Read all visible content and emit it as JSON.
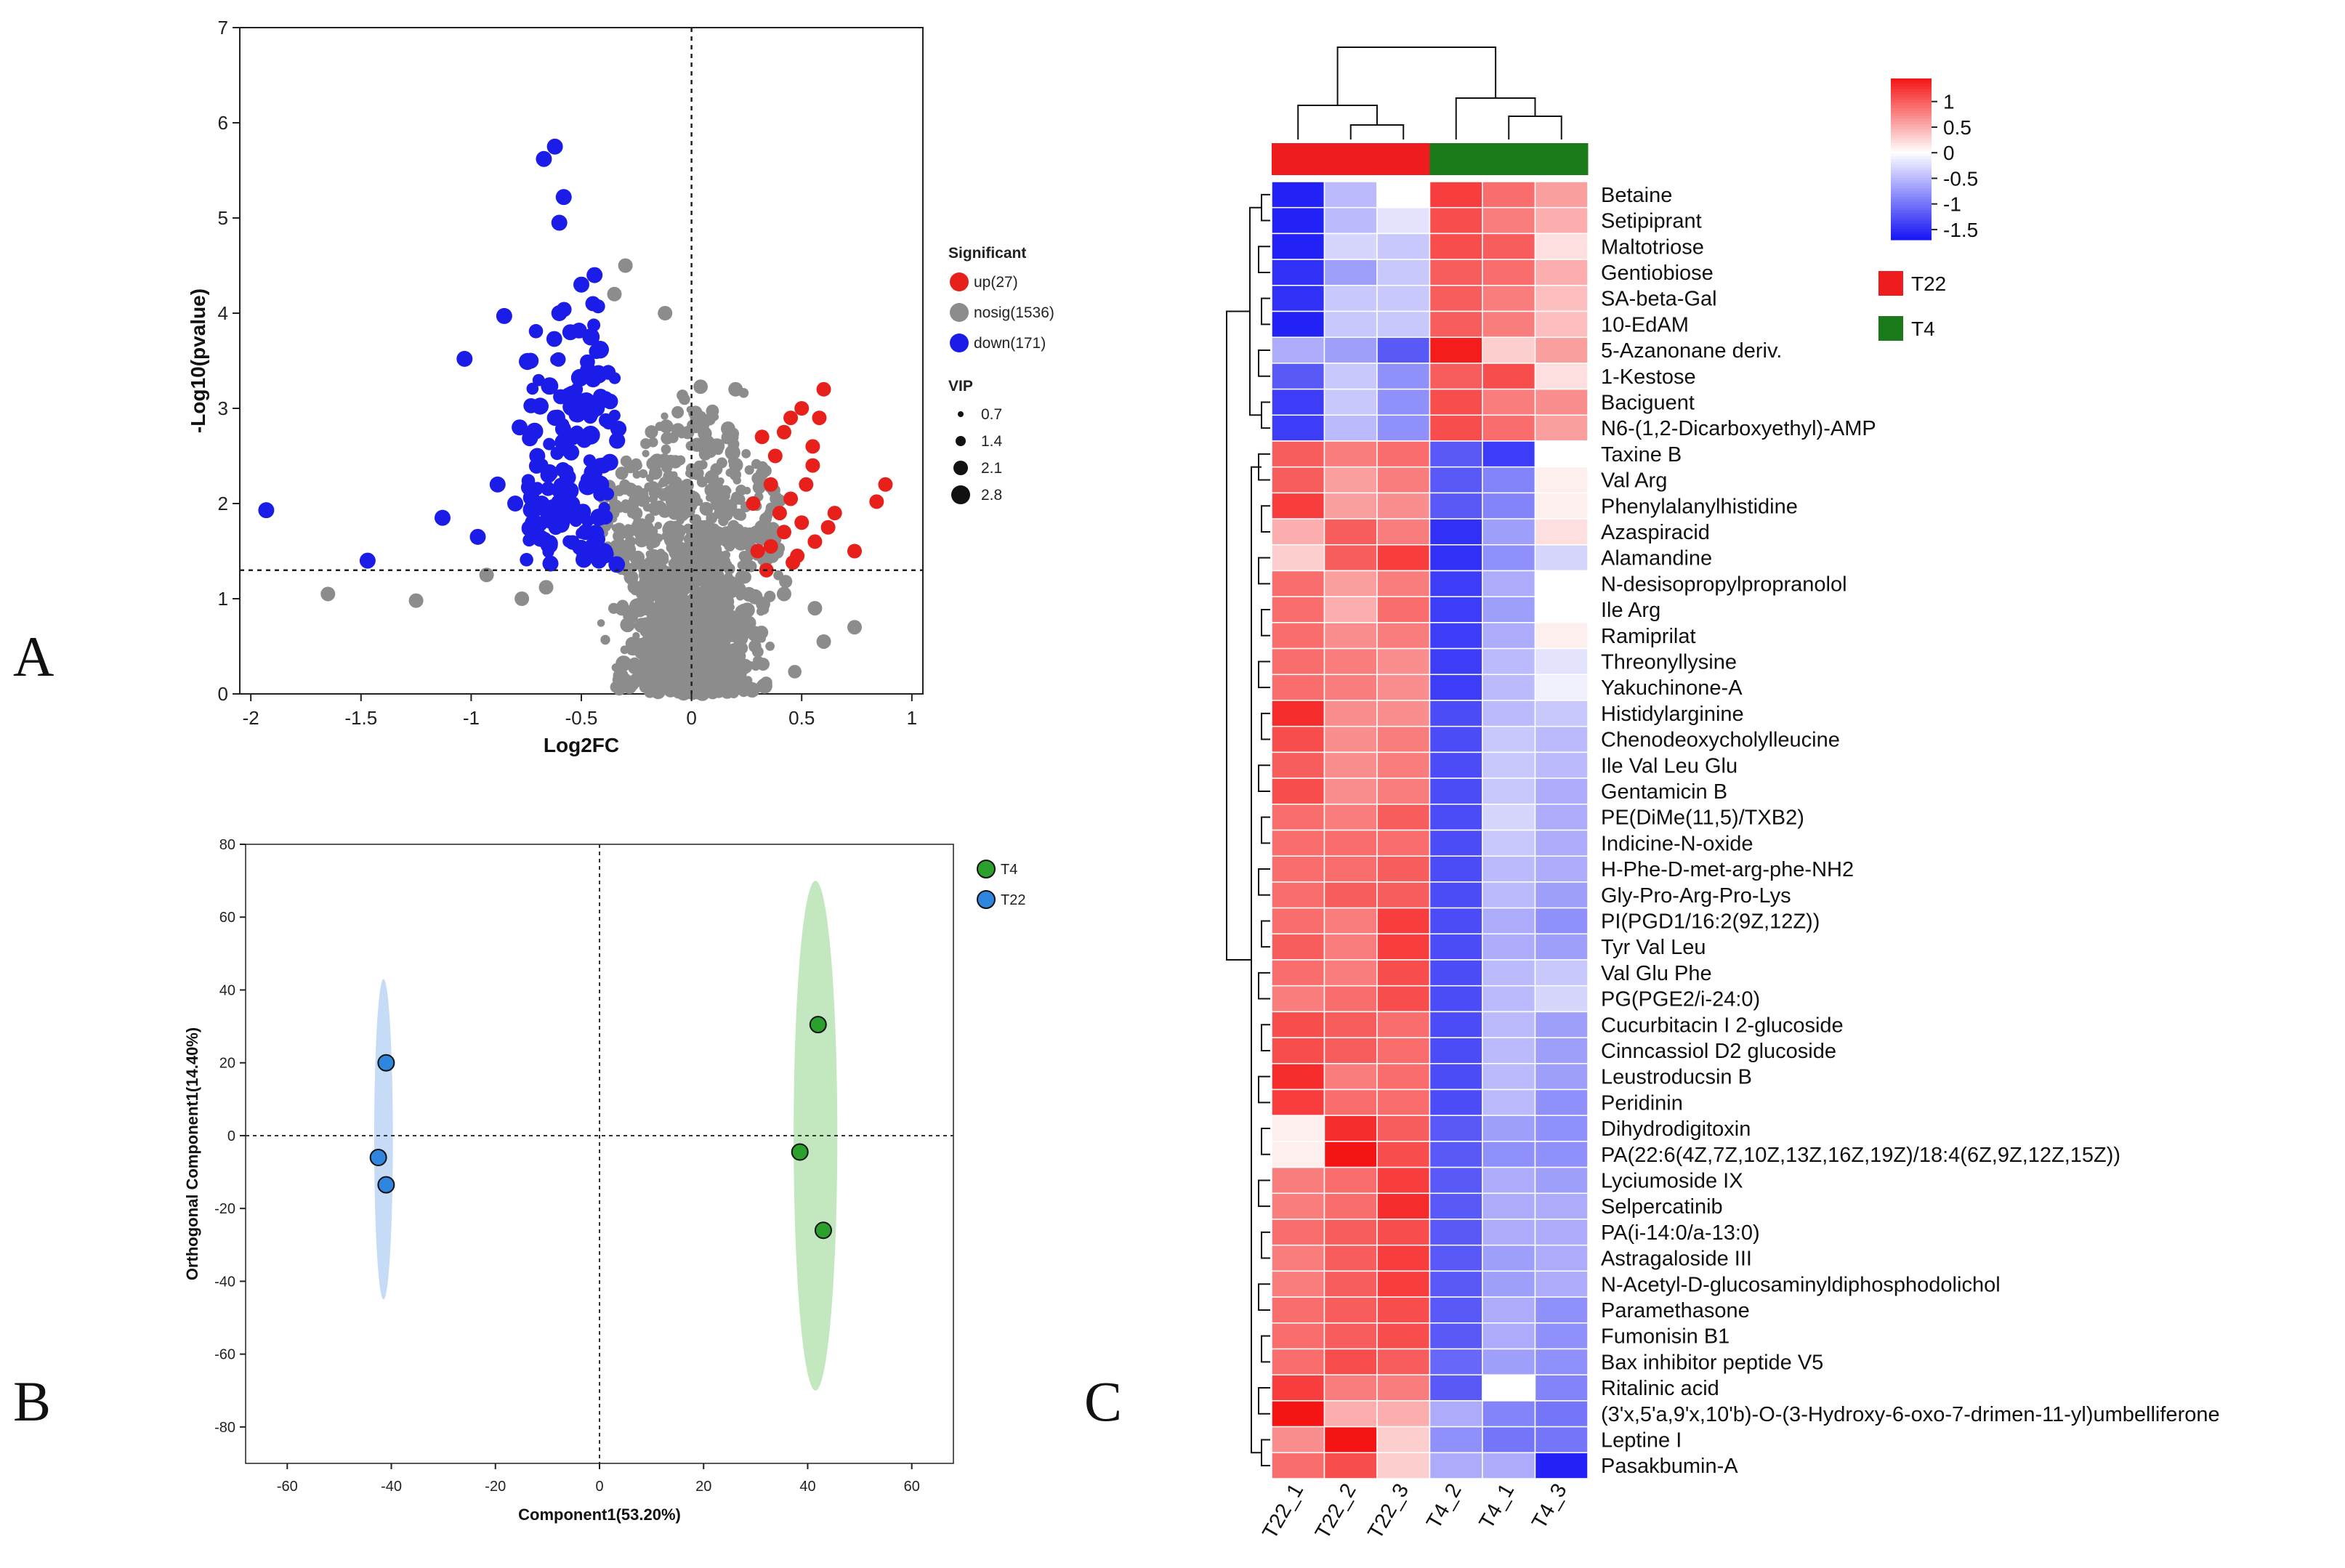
{
  "panels": {
    "a": "A",
    "b": "B",
    "c": "C"
  },
  "chart_data": [
    {
      "type": "scatter",
      "id": "volcano",
      "xlabel": "Log2FC",
      "ylabel": "-Log10(pvalue)",
      "xlim": [
        -2.05,
        1.05
      ],
      "ylim": [
        0,
        7
      ],
      "x_ticks": [
        -2,
        -1.5,
        -1,
        -0.5,
        0,
        0.5,
        1
      ],
      "x_tick_labels": [
        "-2",
        "-1.5",
        "-1",
        "-0.5",
        "0",
        "0.5",
        "1"
      ],
      "y_ticks": [
        0,
        1,
        2,
        3,
        4,
        5,
        6,
        7
      ],
      "y_tick_labels": [
        "0",
        "1",
        "2",
        "3",
        "4",
        "5",
        "6",
        "7"
      ],
      "thresholds": {
        "x": 0,
        "y": 1.3
      },
      "legend": {
        "title": "Significant",
        "items": [
          {
            "label": "up(27)",
            "color": "#e8201c"
          },
          {
            "label": "nosig(1536)",
            "color": "#8c8c8c"
          },
          {
            "label": "down(171)",
            "color": "#1c1ce8"
          }
        ],
        "vip_title": "VIP",
        "vip_items": [
          "0.7",
          "1.4",
          "2.1",
          "2.8"
        ]
      },
      "highlight_points": {
        "down": [
          [
            -1.93,
            1.93
          ],
          [
            -1.47,
            1.4
          ],
          [
            -1.13,
            1.85
          ],
          [
            -1.03,
            3.52
          ],
          [
            -0.97,
            1.65
          ],
          [
            -0.85,
            3.97
          ],
          [
            -0.67,
            5.62
          ],
          [
            -0.62,
            5.75
          ],
          [
            -0.6,
            4.95
          ],
          [
            -0.58,
            5.22
          ],
          [
            -0.73,
            3.5
          ],
          [
            -0.55,
            3.8
          ],
          [
            -0.6,
            4.0
          ],
          [
            -0.5,
            4.3
          ],
          [
            -0.44,
            4.4
          ],
          [
            -0.78,
            2.8
          ],
          [
            -0.7,
            2.5
          ],
          [
            -0.65,
            2.3
          ],
          [
            -0.58,
            2.1
          ],
          [
            -0.52,
            1.9
          ],
          [
            -0.48,
            1.7
          ],
          [
            -0.45,
            1.55
          ],
          [
            -0.42,
            1.4
          ],
          [
            -0.4,
            2.4
          ],
          [
            -0.43,
            3.0
          ],
          [
            -0.47,
            3.4
          ],
          [
            -0.55,
            3.1
          ],
          [
            -0.62,
            2.9
          ],
          [
            -0.68,
            2.0
          ],
          [
            -0.72,
            1.8
          ],
          [
            -0.88,
            2.2
          ],
          [
            -0.8,
            2.0
          ]
        ],
        "up": [
          [
            0.88,
            2.2
          ],
          [
            0.84,
            2.02
          ],
          [
            0.74,
            1.5
          ],
          [
            0.6,
            3.2
          ],
          [
            0.58,
            2.9
          ],
          [
            0.55,
            2.6
          ],
          [
            0.52,
            2.2
          ],
          [
            0.45,
            2.9
          ],
          [
            0.42,
            2.75
          ],
          [
            0.38,
            2.5
          ],
          [
            0.36,
            2.2
          ],
          [
            0.45,
            2.05
          ],
          [
            0.5,
            1.8
          ],
          [
            0.42,
            1.7
          ],
          [
            0.36,
            1.55
          ],
          [
            0.46,
            1.38
          ],
          [
            0.3,
            1.5
          ],
          [
            0.28,
            2.0
          ],
          [
            0.34,
            1.3
          ],
          [
            0.62,
            1.75
          ],
          [
            0.56,
            1.6
          ],
          [
            0.48,
            1.45
          ],
          [
            0.4,
            1.9
          ],
          [
            0.55,
            2.4
          ],
          [
            0.32,
            2.7
          ],
          [
            0.5,
            3.0
          ],
          [
            0.65,
            1.9
          ]
        ],
        "nosig_outliers": [
          [
            -1.65,
            1.05
          ],
          [
            -1.25,
            0.98
          ],
          [
            -0.93,
            1.25
          ],
          [
            -0.77,
            1.0
          ],
          [
            -0.66,
            1.12
          ],
          [
            -0.3,
            4.5
          ],
          [
            -0.35,
            4.2
          ],
          [
            -0.12,
            4.0
          ],
          [
            0.2,
            3.2
          ],
          [
            0.56,
            0.9
          ],
          [
            0.74,
            0.7
          ],
          [
            0.6,
            0.55
          ],
          [
            0.42,
            1.05
          ]
        ]
      }
    },
    {
      "type": "scatter",
      "id": "opls-da",
      "xlabel": "Component1(53.20%)",
      "ylabel": "Orthogonal Component1(14.40%)",
      "xlim": [
        -68,
        68
      ],
      "ylim": [
        -90,
        80
      ],
      "x_ticks": [
        -60,
        -40,
        -20,
        0,
        20,
        40,
        60
      ],
      "x_tick_labels": [
        "-60",
        "-40",
        "-20",
        "0",
        "20",
        "40",
        "60"
      ],
      "y_ticks": [
        80,
        60,
        40,
        20,
        0,
        -20,
        -40,
        -60,
        -80
      ],
      "y_tick_labels": [
        "80",
        "60",
        "40",
        "20",
        "0",
        "-20",
        "-40",
        "-60",
        "-80"
      ],
      "series": [
        {
          "name": "T4",
          "color": "#2ca02c",
          "ellipse_fill": "#b9e3b4",
          "ellipse": {
            "cx": 41.5,
            "cy": 0,
            "rx": 4.2,
            "ry": 70
          },
          "points": [
            [
              42.0,
              30.5
            ],
            [
              38.5,
              -4.5
            ],
            [
              43.0,
              -26.0
            ]
          ]
        },
        {
          "name": "T22",
          "color": "#2e86de",
          "ellipse_fill": "#bcd5f5",
          "ellipse": {
            "cx": -41.5,
            "cy": -1,
            "rx": 1.8,
            "ry": 44
          },
          "points": [
            [
              -41.0,
              20.0
            ],
            [
              -42.5,
              -6.0
            ],
            [
              -41.0,
              -13.5
            ]
          ]
        }
      ]
    },
    {
      "type": "heatmap",
      "id": "heatmap",
      "columns": [
        "T22_1",
        "T22_2",
        "T22_3",
        "T4_2",
        "T4_1",
        "T4_3"
      ],
      "column_groups": [
        "T22",
        "T22",
        "T22",
        "T4",
        "T4",
        "T4"
      ],
      "groups": [
        {
          "label": "T22",
          "color": "#ee1c1c"
        },
        {
          "label": "T4",
          "color": "#1a7a1a"
        }
      ],
      "colorbar": {
        "min": -1.7,
        "max": 1.45,
        "ticks": [
          "1",
          "0.5",
          "0",
          "-0.5",
          "-1",
          "-1.5"
        ],
        "tick_values": [
          1,
          0.5,
          0,
          -0.5,
          -1,
          -1.5
        ]
      },
      "rows": [
        "Betaine",
        "Setipiprant",
        "Maltotriose",
        "Gentiobiose",
        "SA-beta-Gal",
        "10-EdAM",
        "5-Azanonane deriv.",
        "1-Kestose",
        "Baciguent",
        "N6-(1,2-Dicarboxyethyl)-AMP",
        "Taxine B",
        "Val Arg",
        "Phenylalanylhistidine",
        "Azaspiracid",
        "Alamandine",
        "N-desisopropylpropranolol",
        "Ile Arg",
        "Ramiprilat",
        "Threonyllysine",
        "Yakuchinone-A",
        "Histidylarginine",
        "Chenodeoxycholylleucine",
        "Ile Val Leu Glu",
        "Gentamicin B",
        "PE(DiMe(11,5)/TXB2)",
        "Indicine-N-oxide",
        "H-Phe-D-met-arg-phe-NH2",
        "Gly-Pro-Arg-Pro-Lys",
        "PI(PGD1/16:2(9Z,12Z))",
        "Tyr Val Leu",
        "Val Glu Phe",
        "PG(PGE2/i-24:0)",
        "Cucurbitacin I 2-glucoside",
        "Cinncassiol D2 glucoside",
        "Leustroducsin B",
        "Peridinin",
        "Dihydrodigitoxin",
        "PA(22:6(4Z,7Z,10Z,13Z,16Z,19Z)/18:4(6Z,9Z,12Z,15Z))",
        "Lyciumoside IX",
        "Selpercatinib",
        "PA(i-14:0/a-13:0)",
        "Astragaloside III",
        "N-Acetyl-D-glucosaminyldiphosphodolichol",
        "Paramethasone",
        "Fumonisin B1",
        "Bax inhibitor peptide V5",
        "Ritalinic acid",
        "(3'x,5'a,9'x,10'b)-O-(3-Hydroxy-6-oxo-7-drimen-11-yl)umbelliferone",
        "Leptine I",
        "Pasakbumin-A"
      ],
      "values": [
        [
          -1.6,
          -0.5,
          0.0,
          1.2,
          0.9,
          0.6
        ],
        [
          -1.6,
          -0.5,
          -0.2,
          1.1,
          0.8,
          0.5
        ],
        [
          -1.6,
          -0.3,
          -0.4,
          1.1,
          1.0,
          0.2
        ],
        [
          -1.5,
          -0.7,
          -0.4,
          1.0,
          0.9,
          0.5
        ],
        [
          -1.5,
          -0.4,
          -0.4,
          1.0,
          0.8,
          0.4
        ],
        [
          -1.6,
          -0.4,
          -0.4,
          1.0,
          0.8,
          0.4
        ],
        [
          -0.6,
          -0.7,
          -1.2,
          1.4,
          0.3,
          0.6
        ],
        [
          -1.2,
          -0.4,
          -0.8,
          1.0,
          1.1,
          0.2
        ],
        [
          -1.4,
          -0.4,
          -0.8,
          1.1,
          0.8,
          0.7
        ],
        [
          -1.4,
          -0.5,
          -0.8,
          1.1,
          0.9,
          0.6
        ],
        [
          1.0,
          0.8,
          0.9,
          -1.2,
          -1.4,
          0.0
        ],
        [
          1.0,
          0.6,
          0.8,
          -1.2,
          -0.9,
          0.1
        ],
        [
          1.2,
          0.6,
          0.7,
          -1.2,
          -0.9,
          0.1
        ],
        [
          0.5,
          1.0,
          0.8,
          -1.5,
          -0.7,
          0.2
        ],
        [
          0.3,
          1.0,
          1.2,
          -1.5,
          -0.8,
          -0.3
        ],
        [
          0.9,
          0.6,
          0.8,
          -1.4,
          -0.6,
          0.0
        ],
        [
          0.9,
          0.5,
          0.9,
          -1.4,
          -0.7,
          0.0
        ],
        [
          0.9,
          0.7,
          0.8,
          -1.4,
          -0.6,
          0.1
        ],
        [
          0.9,
          0.8,
          0.7,
          -1.4,
          -0.5,
          -0.2
        ],
        [
          0.9,
          0.8,
          0.7,
          -1.4,
          -0.5,
          -0.1
        ],
        [
          1.3,
          0.7,
          0.7,
          -1.3,
          -0.5,
          -0.4
        ],
        [
          1.1,
          0.7,
          0.8,
          -1.3,
          -0.4,
          -0.5
        ],
        [
          1.0,
          0.7,
          0.8,
          -1.3,
          -0.4,
          -0.5
        ],
        [
          1.1,
          0.7,
          0.8,
          -1.3,
          -0.4,
          -0.6
        ],
        [
          0.9,
          0.8,
          1.0,
          -1.3,
          -0.3,
          -0.6
        ],
        [
          0.9,
          0.9,
          0.9,
          -1.3,
          -0.4,
          -0.6
        ],
        [
          0.9,
          0.9,
          1.0,
          -1.3,
          -0.5,
          -0.6
        ],
        [
          0.9,
          1.0,
          1.0,
          -1.3,
          -0.5,
          -0.7
        ],
        [
          0.9,
          0.8,
          1.2,
          -1.3,
          -0.6,
          -0.8
        ],
        [
          1.0,
          0.8,
          1.2,
          -1.3,
          -0.6,
          -0.7
        ],
        [
          0.9,
          0.8,
          1.1,
          -1.3,
          -0.5,
          -0.4
        ],
        [
          0.8,
          0.9,
          1.1,
          -1.3,
          -0.5,
          -0.3
        ],
        [
          1.1,
          1.0,
          0.9,
          -1.3,
          -0.5,
          -0.7
        ],
        [
          1.1,
          1.0,
          0.9,
          -1.3,
          -0.5,
          -0.7
        ],
        [
          1.3,
          0.8,
          0.9,
          -1.3,
          -0.5,
          -0.7
        ],
        [
          1.2,
          0.9,
          0.9,
          -1.3,
          -0.5,
          -0.8
        ],
        [
          0.1,
          1.3,
          1.0,
          -1.2,
          -0.7,
          -0.8
        ],
        [
          0.1,
          1.5,
          1.1,
          -1.2,
          -0.8,
          -0.8
        ],
        [
          0.8,
          0.9,
          1.2,
          -1.2,
          -0.6,
          -0.7
        ],
        [
          0.8,
          0.9,
          1.3,
          -1.2,
          -0.6,
          -0.6
        ],
        [
          0.9,
          1.0,
          1.1,
          -1.2,
          -0.6,
          -0.6
        ],
        [
          0.8,
          1.0,
          1.2,
          -1.2,
          -0.7,
          -0.6
        ],
        [
          0.8,
          1.0,
          1.2,
          -1.2,
          -0.7,
          -0.6
        ],
        [
          0.9,
          1.0,
          1.1,
          -1.2,
          -0.6,
          -0.8
        ],
        [
          0.9,
          1.0,
          1.1,
          -1.2,
          -0.6,
          -0.8
        ],
        [
          0.9,
          1.1,
          1.0,
          -1.1,
          -0.7,
          -0.8
        ],
        [
          1.2,
          0.8,
          0.8,
          -1.2,
          0.0,
          -0.9
        ],
        [
          1.5,
          0.5,
          0.5,
          -0.6,
          -0.9,
          -1.0
        ],
        [
          0.7,
          1.5,
          0.3,
          -0.8,
          -1.0,
          -1.0
        ],
        [
          0.9,
          1.1,
          0.3,
          -0.6,
          -0.6,
          -1.6
        ]
      ]
    }
  ]
}
